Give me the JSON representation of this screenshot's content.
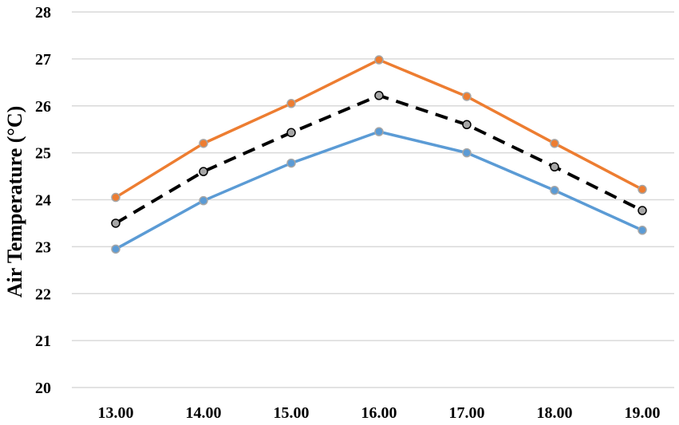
{
  "chart_data": {
    "type": "line",
    "title": "",
    "xlabel": "",
    "ylabel": "Air Temperature (°C)",
    "categories": [
      "13.00",
      "14.00",
      "15.00",
      "16.00",
      "17.00",
      "18.00",
      "19.00"
    ],
    "ylim": [
      20,
      28
    ],
    "yticks": [
      20,
      21,
      22,
      23,
      24,
      25,
      26,
      27,
      28
    ],
    "grid": true,
    "legend": "none",
    "series": [
      {
        "color": "#ED7D31",
        "line_style": "solid",
        "values": [
          24.05,
          25.2,
          26.05,
          26.98,
          26.2,
          25.2,
          24.22
        ]
      },
      {
        "color": "#000000",
        "line_style": "dashed",
        "values": [
          23.5,
          24.6,
          25.43,
          26.22,
          25.6,
          24.7,
          23.77
        ]
      },
      {
        "color": "#5B9BD5",
        "line_style": "solid",
        "values": [
          22.95,
          23.98,
          24.78,
          25.45,
          25.0,
          24.2,
          23.35
        ]
      }
    ]
  }
}
